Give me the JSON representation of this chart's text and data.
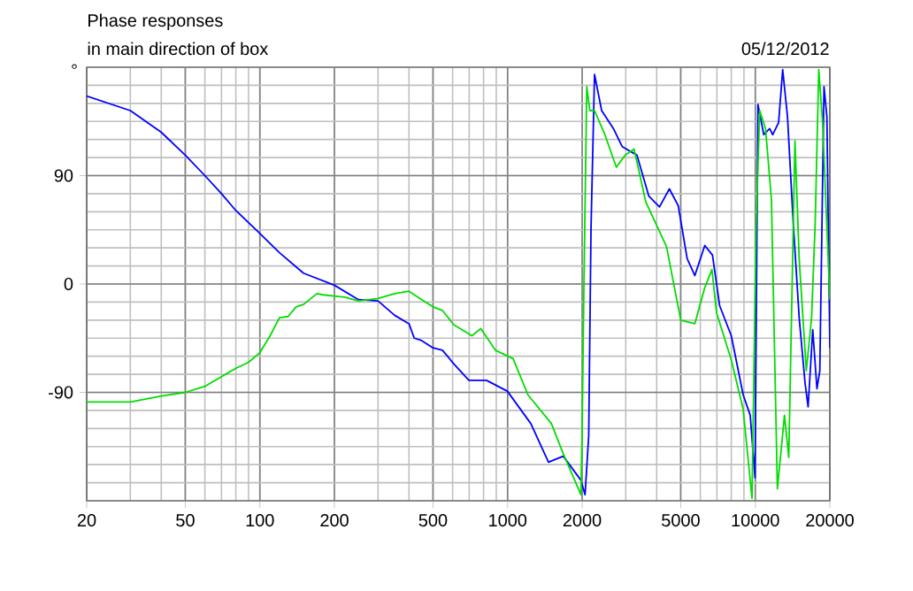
{
  "chart_data": {
    "type": "line",
    "title": "Phase responses",
    "subtitle": "in main direction of box",
    "annotations": [
      "05/12/2012"
    ],
    "ylabel": "°",
    "log": "x",
    "grid": true,
    "marker": "none",
    "line_style": "solid",
    "xlim": [
      20,
      20000
    ],
    "xticks": [
      20,
      50,
      100,
      200,
      500,
      1000,
      2000,
      5000,
      10000,
      20000
    ],
    "ylim": [
      -180,
      180
    ],
    "yticks": [
      -90,
      0,
      90
    ],
    "series": [
      {
        "color": "#0000ff",
        "x": [
          20,
          30,
          40,
          50,
          60,
          70,
          80,
          100,
          120,
          150,
          200,
          250,
          300,
          350,
          400,
          420,
          450,
          500,
          546,
          605,
          698,
          822,
          998,
          1242,
          1463,
          1678,
          1978,
          2055,
          2126,
          2172,
          2244,
          2398,
          2676,
          2904,
          3328,
          3718,
          4104,
          4500,
          4886,
          5310,
          5700,
          6254,
          6718,
          7180,
          8000,
          8934,
          9540,
          9976,
          10250,
          10820,
          11430,
          11760,
          12420,
          12900,
          13490,
          14230,
          15040,
          15880,
          16340,
          17060,
          17740,
          18220,
          18940,
          19460,
          20000
        ],
        "values": [
          156,
          144,
          126,
          107,
          90,
          75,
          61,
          42,
          26,
          9,
          -1,
          -13,
          -14,
          -26,
          -33,
          -45,
          -47,
          -53,
          -55,
          -66,
          -80,
          -80,
          -89,
          -116,
          -148,
          -143,
          -163,
          -175,
          -126,
          46,
          174,
          144,
          129,
          114,
          107,
          73,
          64,
          79,
          65,
          21,
          7,
          32,
          24,
          -18,
          -43,
          -92,
          -109,
          -161,
          149,
          124,
          129,
          124,
          134,
          178,
          139,
          51,
          -28,
          -82,
          -102,
          -38,
          -87,
          -72,
          164,
          139,
          -53
        ]
      },
      {
        "color": "#00dd00",
        "x": [
          20,
          30,
          40,
          50,
          60,
          70,
          80,
          90,
          100,
          110,
          120,
          130,
          140,
          150,
          170,
          180,
          200,
          220,
          250,
          300,
          350,
          400,
          450,
          500,
          546,
          608,
          718,
          779,
          893,
          1053,
          1208,
          1504,
          1678,
          1978,
          2000,
          2033,
          2088,
          2148,
          2244,
          2470,
          2749,
          2985,
          3240,
          3616,
          4383,
          5000,
          5700,
          6254,
          6683,
          6980,
          8000,
          8934,
          9700,
          10080,
          10420,
          11000,
          11620,
          12280,
          13120,
          13650,
          14460,
          15040,
          16070,
          16880,
          17450,
          18040,
          18700,
          20000
        ],
        "values": [
          -98,
          -98,
          -93,
          -90,
          -85,
          -77,
          -70,
          -65,
          -57,
          -43,
          -28,
          -27,
          -19,
          -17,
          -8,
          -9,
          -10,
          -11,
          -14,
          -12,
          -8,
          -6,
          -13,
          -19,
          -22,
          -34,
          -43,
          -37,
          -55,
          -62,
          -92,
          -116,
          -141,
          -175,
          -121,
          -3,
          164,
          144,
          144,
          124,
          97,
          107,
          112,
          68,
          31,
          -30,
          -33,
          -3,
          12,
          -24,
          -63,
          -104,
          -178,
          50,
          144,
          129,
          70,
          -170,
          -109,
          -144,
          119,
          21,
          -72,
          -28,
          50,
          178,
          134,
          -13
        ]
      }
    ]
  }
}
